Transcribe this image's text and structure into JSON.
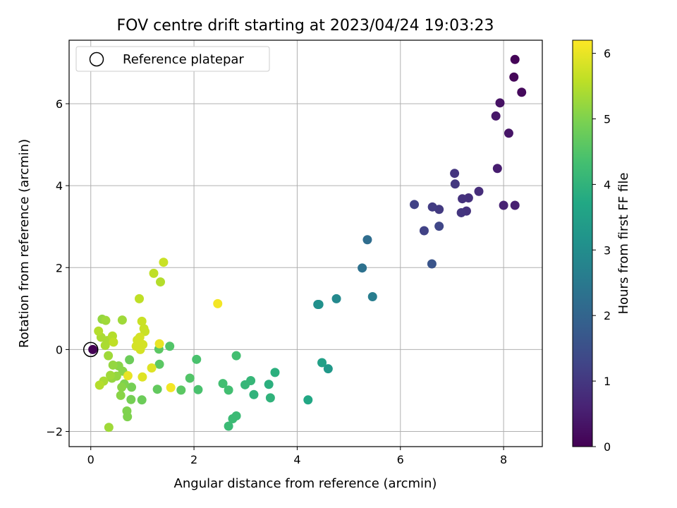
{
  "chart_data": {
    "type": "scatter",
    "title": "FOV centre drift starting at 2023/04/24 19:03:23",
    "xlabel": "Angular distance from reference (arcmin)",
    "ylabel": "Rotation from reference (arcmin)",
    "xlim": [
      -0.42,
      8.75
    ],
    "ylim": [
      -2.37,
      7.55
    ],
    "xticks": [
      0,
      2,
      4,
      6,
      8
    ],
    "yticks": [
      -2,
      0,
      2,
      4,
      6
    ],
    "xtick_labels": [
      "0",
      "2",
      "4",
      "6",
      "8"
    ],
    "ytick_labels": [
      "−2",
      "0",
      "2",
      "4",
      "6"
    ],
    "grid": true,
    "legend": {
      "position": "top-left",
      "label": "Reference platepar"
    },
    "reference_point": {
      "x": 0,
      "y": 0
    },
    "colorbar": {
      "label": "Hours from first FF file",
      "colormap": "viridis",
      "range": [
        0,
        6.2
      ],
      "ticks": [
        0,
        1,
        2,
        3,
        4,
        5,
        6
      ],
      "tick_labels": [
        "0",
        "1",
        "2",
        "3",
        "4",
        "5",
        "6"
      ]
    },
    "points": [
      {
        "x": 8.22,
        "y": 7.08,
        "c": 0.05
      },
      {
        "x": 8.2,
        "y": 6.65,
        "c": 0.1
      },
      {
        "x": 8.35,
        "y": 6.28,
        "c": 0.15
      },
      {
        "x": 7.93,
        "y": 6.02,
        "c": 0.3
      },
      {
        "x": 7.85,
        "y": 5.7,
        "c": 0.4
      },
      {
        "x": 8.1,
        "y": 5.28,
        "c": 0.35
      },
      {
        "x": 7.88,
        "y": 4.42,
        "c": 0.5
      },
      {
        "x": 8.0,
        "y": 3.52,
        "c": 0.6
      },
      {
        "x": 8.22,
        "y": 3.52,
        "c": 0.55
      },
      {
        "x": 7.52,
        "y": 3.86,
        "c": 0.8
      },
      {
        "x": 7.32,
        "y": 3.7,
        "c": 0.85
      },
      {
        "x": 7.2,
        "y": 3.68,
        "c": 0.9
      },
      {
        "x": 7.05,
        "y": 4.3,
        "c": 0.95
      },
      {
        "x": 7.06,
        "y": 4.04,
        "c": 1.0
      },
      {
        "x": 7.28,
        "y": 3.38,
        "c": 0.9
      },
      {
        "x": 7.18,
        "y": 3.34,
        "c": 0.95
      },
      {
        "x": 6.75,
        "y": 3.42,
        "c": 1.05
      },
      {
        "x": 6.62,
        "y": 3.48,
        "c": 1.1
      },
      {
        "x": 6.27,
        "y": 3.54,
        "c": 1.2
      },
      {
        "x": 6.46,
        "y": 2.9,
        "c": 1.2
      },
      {
        "x": 6.75,
        "y": 3.01,
        "c": 1.3
      },
      {
        "x": 6.61,
        "y": 2.09,
        "c": 1.6
      },
      {
        "x": 5.36,
        "y": 2.68,
        "c": 2.2
      },
      {
        "x": 5.26,
        "y": 1.99,
        "c": 2.3
      },
      {
        "x": 5.46,
        "y": 1.29,
        "c": 2.6
      },
      {
        "x": 4.76,
        "y": 1.24,
        "c": 2.9
      },
      {
        "x": 4.4,
        "y": 1.1,
        "c": 3.0
      },
      {
        "x": 4.42,
        "y": 1.1,
        "c": 3.1
      },
      {
        "x": 4.6,
        "y": -0.47,
        "c": 3.3
      },
      {
        "x": 4.48,
        "y": -0.32,
        "c": 3.5
      },
      {
        "x": 4.21,
        "y": -1.23,
        "c": 3.7
      },
      {
        "x": 3.57,
        "y": -0.56,
        "c": 3.9
      },
      {
        "x": 3.48,
        "y": -1.18,
        "c": 4.0
      },
      {
        "x": 3.45,
        "y": -0.85,
        "c": 3.9
      },
      {
        "x": 3.16,
        "y": -1.1,
        "c": 4.0
      },
      {
        "x": 3.1,
        "y": -0.76,
        "c": 4.1
      },
      {
        "x": 2.99,
        "y": -0.86,
        "c": 4.1
      },
      {
        "x": 2.82,
        "y": -1.62,
        "c": 4.2
      },
      {
        "x": 2.75,
        "y": -1.69,
        "c": 4.2
      },
      {
        "x": 2.67,
        "y": -1.87,
        "c": 4.2
      },
      {
        "x": 2.82,
        "y": -0.15,
        "c": 4.3
      },
      {
        "x": 2.67,
        "y": -0.99,
        "c": 4.3
      },
      {
        "x": 2.56,
        "y": -0.83,
        "c": 4.3
      },
      {
        "x": 2.08,
        "y": -0.98,
        "c": 4.4
      },
      {
        "x": 2.05,
        "y": -0.24,
        "c": 4.4
      },
      {
        "x": 1.92,
        "y": -0.7,
        "c": 4.5
      },
      {
        "x": 1.75,
        "y": -0.99,
        "c": 4.6
      },
      {
        "x": 1.53,
        "y": 0.08,
        "c": 4.5
      },
      {
        "x": 1.32,
        "y": 0.01,
        "c": 4.6
      },
      {
        "x": 1.33,
        "y": -0.36,
        "c": 4.6
      },
      {
        "x": 1.29,
        "y": -0.97,
        "c": 4.7
      },
      {
        "x": 0.99,
        "y": -1.23,
        "c": 4.8
      },
      {
        "x": 0.79,
        "y": -0.92,
        "c": 4.9
      },
      {
        "x": 0.78,
        "y": -1.22,
        "c": 4.9
      },
      {
        "x": 0.75,
        "y": -0.25,
        "c": 4.8
      },
      {
        "x": 0.7,
        "y": -1.5,
        "c": 5.0
      },
      {
        "x": 0.71,
        "y": -1.64,
        "c": 5.0
      },
      {
        "x": 0.65,
        "y": -0.84,
        "c": 5.0
      },
      {
        "x": 0.62,
        "y": -0.53,
        "c": 5.1
      },
      {
        "x": 0.6,
        "y": -0.92,
        "c": 5.1
      },
      {
        "x": 0.58,
        "y": -1.12,
        "c": 5.1
      },
      {
        "x": 0.54,
        "y": -0.4,
        "c": 5.1
      },
      {
        "x": 0.5,
        "y": -0.65,
        "c": 5.2
      },
      {
        "x": 0.43,
        "y": -0.38,
        "c": 5.2
      },
      {
        "x": 0.41,
        "y": -0.7,
        "c": 5.2
      },
      {
        "x": 0.38,
        "y": -0.63,
        "c": 5.3
      },
      {
        "x": 0.35,
        "y": -1.9,
        "c": 5.3
      },
      {
        "x": 0.34,
        "y": -0.15,
        "c": 5.3
      },
      {
        "x": 0.32,
        "y": 0.22,
        "c": 5.4
      },
      {
        "x": 0.28,
        "y": 0.1,
        "c": 5.4
      },
      {
        "x": 0.25,
        "y": -0.77,
        "c": 5.4
      },
      {
        "x": 0.22,
        "y": 0.74,
        "c": 5.2
      },
      {
        "x": 0.29,
        "y": 0.71,
        "c": 5.3
      },
      {
        "x": 0.2,
        "y": 0.3,
        "c": 5.4
      },
      {
        "x": 0.15,
        "y": 0.45,
        "c": 5.5
      },
      {
        "x": 0.17,
        "y": -0.87,
        "c": 5.5
      },
      {
        "x": 0.42,
        "y": 0.33,
        "c": 5.5
      },
      {
        "x": 0.44,
        "y": 0.18,
        "c": 5.6
      },
      {
        "x": 0.61,
        "y": 0.72,
        "c": 5.3
      },
      {
        "x": 0.94,
        "y": 1.24,
        "c": 5.6
      },
      {
        "x": 1.22,
        "y": 1.86,
        "c": 5.6
      },
      {
        "x": 1.35,
        "y": 1.65,
        "c": 5.5
      },
      {
        "x": 1.41,
        "y": 2.13,
        "c": 5.7
      },
      {
        "x": 0.99,
        "y": 0.69,
        "c": 5.7
      },
      {
        "x": 1.03,
        "y": 0.51,
        "c": 5.7
      },
      {
        "x": 1.05,
        "y": 0.44,
        "c": 5.7
      },
      {
        "x": 0.95,
        "y": 0.3,
        "c": 5.8
      },
      {
        "x": 0.9,
        "y": 0.23,
        "c": 5.8
      },
      {
        "x": 0.88,
        "y": 0.08,
        "c": 5.8
      },
      {
        "x": 0.96,
        "y": 0.0,
        "c": 5.8
      },
      {
        "x": 1.01,
        "y": 0.12,
        "c": 5.8
      },
      {
        "x": 1.0,
        "y": -0.67,
        "c": 5.9
      },
      {
        "x": 1.18,
        "y": -0.45,
        "c": 5.9
      },
      {
        "x": 1.33,
        "y": 0.14,
        "c": 6.0
      },
      {
        "x": 1.55,
        "y": -0.93,
        "c": 6.1
      },
      {
        "x": 2.46,
        "y": 1.12,
        "c": 6.1
      },
      {
        "x": 0.72,
        "y": -0.64,
        "c": 6.0
      },
      {
        "x": 0.04,
        "y": 0.0,
        "c": 0.0
      }
    ]
  }
}
